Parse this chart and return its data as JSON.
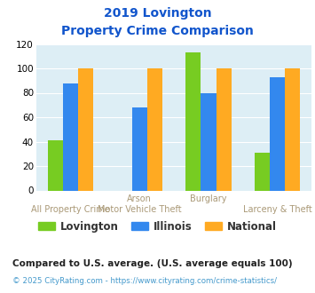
{
  "title_line1": "2019 Lovington",
  "title_line2": "Property Crime Comparison",
  "lovington": [
    41,
    0,
    113,
    31
  ],
  "illinois": [
    88,
    68,
    80,
    93
  ],
  "national": [
    100,
    100,
    100,
    100
  ],
  "colors": {
    "lovington": "#77cc22",
    "illinois": "#3388ee",
    "national": "#ffaa22"
  },
  "ylim": [
    0,
    120
  ],
  "yticks": [
    0,
    20,
    40,
    60,
    80,
    100,
    120
  ],
  "legend_labels": [
    "Lovington",
    "Illinois",
    "National"
  ],
  "top_labels": [
    "",
    "Arson",
    "Burglary",
    ""
  ],
  "bottom_labels": [
    "All Property Crime",
    "Motor Vehicle Theft",
    "",
    "Larceny & Theft"
  ],
  "footnote1": "Compared to U.S. average. (U.S. average equals 100)",
  "footnote2": "© 2025 CityRating.com - https://www.cityrating.com/crime-statistics/",
  "bg_color": "#ddeef5",
  "title_color": "#1155cc",
  "footnote1_color": "#222222",
  "footnote2_color": "#4499cc",
  "xlabel_color": "#aa9977",
  "legend_label_color": "#333333"
}
